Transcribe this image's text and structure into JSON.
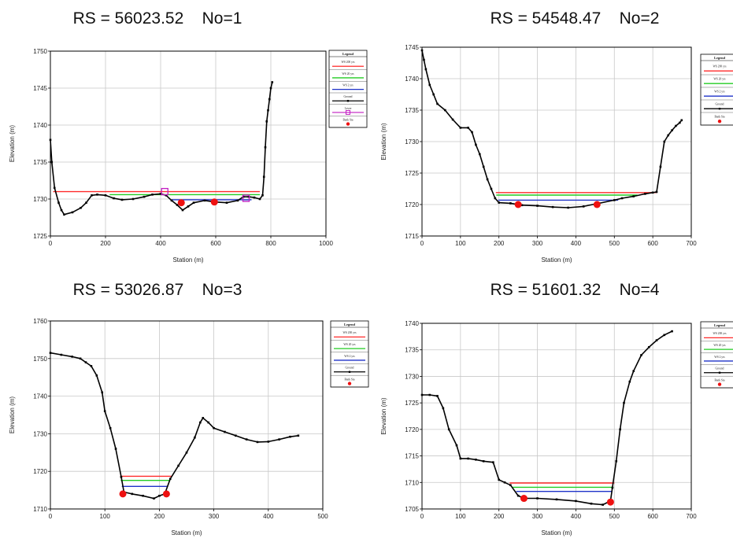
{
  "chart_data": [
    {
      "type": "line",
      "title": "RS = 56023.52    No=1",
      "xlabel": "Station (m)",
      "ylabel": "Elevation (m)",
      "xlim": [
        0,
        1000
      ],
      "ylim": [
        1725,
        1750
      ],
      "xticks": [
        0,
        200,
        400,
        600,
        800,
        1000
      ],
      "yticks": [
        1725,
        1730,
        1735,
        1740,
        1745,
        1750
      ],
      "grid": true,
      "legend_title": "Legend",
      "legend": [
        "WS 200 yrs",
        "WS 20 yrs",
        "WS 2 yrs",
        "Ground",
        "Levee",
        "Bank Sta"
      ],
      "series": [
        {
          "name": "WS 200 yrs",
          "color": "#ff2a2a",
          "x": [
            10,
            760
          ],
          "y": [
            1731.0,
            1731.0
          ]
        },
        {
          "name": "WS 20 yrs",
          "color": "#22cc22",
          "x": [
            215,
            760
          ],
          "y": [
            1730.6,
            1730.6
          ]
        },
        {
          "name": "WS 2 yrs",
          "color": "#1e32c8",
          "x": [
            440,
            730
          ],
          "y": [
            1729.9,
            1729.9
          ]
        },
        {
          "name": "Ground",
          "color": "#000000",
          "x": [
            0,
            5,
            15,
            30,
            40,
            50,
            80,
            110,
            130,
            150,
            170,
            200,
            230,
            260,
            300,
            340,
            370,
            400,
            420,
            440,
            460,
            480,
            500,
            520,
            560,
            600,
            640,
            680,
            700,
            720,
            740,
            760,
            770,
            775,
            780,
            785,
            790,
            795,
            800,
            805
          ],
          "y": [
            1738.0,
            1735.0,
            1731.5,
            1729.5,
            1728.5,
            1727.9,
            1728.2,
            1728.8,
            1729.5,
            1730.5,
            1730.6,
            1730.5,
            1730.1,
            1729.9,
            1730.0,
            1730.3,
            1730.6,
            1730.7,
            1730.5,
            1729.8,
            1729.2,
            1728.5,
            1729.0,
            1729.5,
            1729.8,
            1729.6,
            1729.5,
            1729.8,
            1730.3,
            1730.3,
            1730.2,
            1730.0,
            1730.5,
            1733.0,
            1737.0,
            1740.5,
            1742.0,
            1743.5,
            1745.0,
            1745.8
          ]
        },
        {
          "name": "Levee",
          "color": "#c21ec2",
          "x": [
            415,
            710
          ],
          "y": [
            1731.0,
            1730.1
          ]
        },
        {
          "name": "Bank Sta",
          "color": "#ee1111",
          "x": [
            475,
            595
          ],
          "y": [
            1729.5,
            1729.6
          ]
        }
      ]
    },
    {
      "type": "line",
      "title": "RS = 54548.47    No=2",
      "xlabel": "Station (m)",
      "ylabel": "Elevation (m)",
      "xlim": [
        0,
        700
      ],
      "ylim": [
        1715,
        1745
      ],
      "xticks": [
        0,
        100,
        200,
        300,
        400,
        500,
        600,
        700
      ],
      "yticks": [
        1715,
        1720,
        1725,
        1730,
        1735,
        1740,
        1745
      ],
      "grid": true,
      "legend_title": "Legend",
      "legend": [
        "WS 200 yrs",
        "WS 20 yrs",
        "WS 2 yrs",
        "Ground",
        "Bank Sta"
      ],
      "series": [
        {
          "name": "WS 200 yrs",
          "color": "#ff2a2a",
          "x": [
            192,
            610
          ],
          "y": [
            1721.9,
            1721.9
          ]
        },
        {
          "name": "WS 20 yrs",
          "color": "#22cc22",
          "x": [
            193,
            560
          ],
          "y": [
            1721.5,
            1721.5
          ]
        },
        {
          "name": "WS 2 yrs",
          "color": "#1e32c8",
          "x": [
            198,
            510
          ],
          "y": [
            1720.7,
            1720.7
          ]
        },
        {
          "name": "Ground",
          "color": "#000000",
          "x": [
            0,
            5,
            10,
            20,
            30,
            40,
            60,
            80,
            100,
            120,
            130,
            140,
            150,
            160,
            170,
            180,
            190,
            200,
            230,
            260,
            300,
            340,
            380,
            420,
            460,
            500,
            520,
            550,
            580,
            600,
            610,
            620,
            630,
            640,
            650,
            660,
            670,
            675
          ],
          "y": [
            1744.5,
            1743.0,
            1741.5,
            1739.0,
            1737.5,
            1736.0,
            1735.0,
            1733.5,
            1732.2,
            1732.2,
            1731.5,
            1729.5,
            1728.0,
            1726.0,
            1724.0,
            1722.5,
            1721.0,
            1720.3,
            1720.2,
            1719.9,
            1719.8,
            1719.6,
            1719.5,
            1719.7,
            1720.2,
            1720.7,
            1721.0,
            1721.3,
            1721.7,
            1721.9,
            1722.0,
            1726.0,
            1730.0,
            1731.0,
            1731.8,
            1732.5,
            1733.0,
            1733.4
          ]
        },
        {
          "name": "Bank Sta",
          "color": "#ee1111",
          "x": [
            250,
            455
          ],
          "y": [
            1720.0,
            1720.0
          ]
        }
      ]
    },
    {
      "type": "line",
      "title": "RS = 53026.87    No=3",
      "xlabel": "Station (m)",
      "ylabel": "Elevation (m)",
      "xlim": [
        0,
        500
      ],
      "ylim": [
        1710,
        1760
      ],
      "xticks": [
        0,
        100,
        200,
        300,
        400,
        500
      ],
      "yticks": [
        1710,
        1720,
        1730,
        1740,
        1750,
        1760
      ],
      "grid": true,
      "legend_title": "Legend",
      "legend": [
        "WS 200 yrs",
        "WS 20 yrs",
        "WS 2 yrs",
        "Ground",
        "Bank Sta"
      ],
      "series": [
        {
          "name": "WS 200 yrs",
          "color": "#ff2a2a",
          "x": [
            128,
            222
          ],
          "y": [
            1718.7,
            1718.7
          ]
        },
        {
          "name": "WS 20 yrs",
          "color": "#22cc22",
          "x": [
            129,
            220
          ],
          "y": [
            1717.6,
            1717.6
          ]
        },
        {
          "name": "WS 2 yrs",
          "color": "#1e32c8",
          "x": [
            131,
            216
          ],
          "y": [
            1716.0,
            1716.0
          ]
        },
        {
          "name": "Ground",
          "color": "#000000",
          "x": [
            0,
            20,
            40,
            55,
            65,
            75,
            85,
            95,
            100,
            110,
            120,
            130,
            135,
            150,
            170,
            190,
            200,
            210,
            220,
            235,
            250,
            265,
            275,
            280,
            290,
            300,
            320,
            340,
            360,
            380,
            400,
            420,
            440,
            455
          ],
          "y": [
            1751.5,
            1751.0,
            1750.5,
            1750.0,
            1749.0,
            1748.0,
            1745.5,
            1741.0,
            1736.0,
            1731.5,
            1726.0,
            1718.5,
            1714.5,
            1714.0,
            1713.5,
            1712.8,
            1713.5,
            1714.0,
            1718.0,
            1721.5,
            1725.0,
            1729.0,
            1733.0,
            1734.2,
            1733.0,
            1731.5,
            1730.5,
            1729.5,
            1728.5,
            1727.8,
            1727.9,
            1728.5,
            1729.2,
            1729.5
          ]
        },
        {
          "name": "Bank Sta",
          "color": "#ee1111",
          "x": [
            133,
            213
          ],
          "y": [
            1714.0,
            1714.0
          ]
        }
      ]
    },
    {
      "type": "line",
      "title": "RS = 51601.32    No=4",
      "xlabel": "Station (m)",
      "ylabel": "Elevation (m)",
      "xlim": [
        0,
        700
      ],
      "ylim": [
        1705,
        1740
      ],
      "xticks": [
        0,
        100,
        200,
        300,
        400,
        500,
        600,
        700
      ],
      "yticks": [
        1705,
        1710,
        1715,
        1720,
        1725,
        1730,
        1735,
        1740
      ],
      "grid": true,
      "legend_title": "Legend",
      "legend": [
        "WS 200 yrs",
        "WS 20 yrs",
        "WS 2 yrs",
        "Ground",
        "Bank Sta"
      ],
      "series": [
        {
          "name": "WS 200 yrs",
          "color": "#ff2a2a",
          "x": [
            228,
            500
          ],
          "y": [
            1709.9,
            1709.9
          ]
        },
        {
          "name": "WS 20 yrs",
          "color": "#22cc22",
          "x": [
            235,
            498
          ],
          "y": [
            1709.1,
            1709.1
          ]
        },
        {
          "name": "WS 2 yrs",
          "color": "#1e32c8",
          "x": [
            245,
            495
          ],
          "y": [
            1708.3,
            1708.3
          ]
        },
        {
          "name": "Ground",
          "color": "#000000",
          "x": [
            0,
            20,
            40,
            55,
            70,
            90,
            100,
            120,
            140,
            160,
            185,
            200,
            215,
            230,
            250,
            265,
            300,
            350,
            400,
            440,
            470,
            490,
            495,
            505,
            515,
            525,
            540,
            550,
            570,
            590,
            610,
            630,
            650
          ],
          "y": [
            1726.5,
            1726.5,
            1726.3,
            1724.0,
            1720.0,
            1717.0,
            1714.5,
            1714.5,
            1714.3,
            1714.0,
            1713.8,
            1710.5,
            1710.0,
            1709.5,
            1707.5,
            1707.0,
            1707.0,
            1706.8,
            1706.5,
            1706.0,
            1705.8,
            1706.5,
            1709.0,
            1714.0,
            1720.0,
            1725.0,
            1729.0,
            1731.0,
            1734.0,
            1735.5,
            1736.8,
            1737.8,
            1738.5
          ]
        },
        {
          "name": "Bank Sta",
          "color": "#ee1111",
          "x": [
            265,
            490
          ],
          "y": [
            1707.0,
            1706.3
          ]
        }
      ]
    }
  ]
}
